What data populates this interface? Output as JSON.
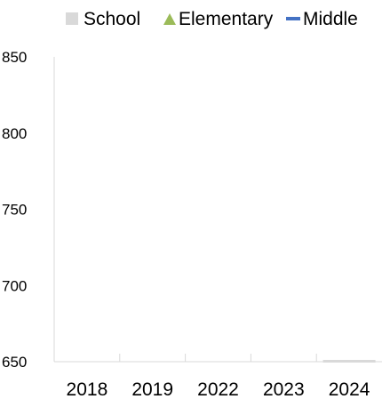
{
  "chart_data": {
    "type": "bar",
    "categories": [
      "2018",
      "2019",
      "2022",
      "2023",
      "2024"
    ],
    "series": [
      {
        "name": "School",
        "values": [
          null,
          null,
          null,
          null,
          650
        ],
        "marker": "square",
        "color": "#d9d9d9"
      },
      {
        "name": "Elementary",
        "values": [
          null,
          null,
          null,
          null,
          null
        ],
        "marker": "triangle",
        "color": "#9bbb59"
      },
      {
        "name": "Middle",
        "values": [
          null,
          null,
          null,
          null,
          null
        ],
        "marker": "dash",
        "color": "#4472c4"
      }
    ],
    "yticks": [
      "650",
      "700",
      "750",
      "800",
      "850"
    ],
    "ylim": [
      650,
      850
    ],
    "grid": false,
    "legend_position": "top",
    "title": "",
    "xlabel": "",
    "ylabel": ""
  }
}
